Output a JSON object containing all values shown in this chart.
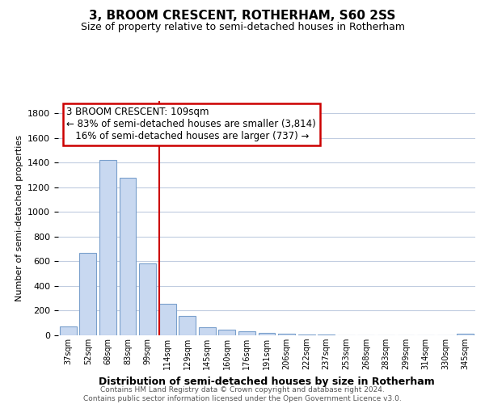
{
  "title": "3, BROOM CRESCENT, ROTHERHAM, S60 2SS",
  "subtitle": "Size of property relative to semi-detached houses in Rotherham",
  "xlabel": "Distribution of semi-detached houses by size in Rotherham",
  "ylabel": "Number of semi-detached properties",
  "bar_color": "#c8d8f0",
  "bar_edge_color": "#7aa0cc",
  "categories": [
    "37sqm",
    "52sqm",
    "68sqm",
    "83sqm",
    "99sqm",
    "114sqm",
    "129sqm",
    "145sqm",
    "160sqm",
    "176sqm",
    "191sqm",
    "206sqm",
    "222sqm",
    "237sqm",
    "253sqm",
    "268sqm",
    "283sqm",
    "299sqm",
    "314sqm",
    "330sqm",
    "345sqm"
  ],
  "values": [
    70,
    670,
    1420,
    1280,
    580,
    255,
    155,
    65,
    45,
    30,
    20,
    15,
    8,
    5,
    3,
    2,
    2,
    1,
    0,
    0,
    10
  ],
  "ylim": [
    0,
    1900
  ],
  "yticks": [
    0,
    200,
    400,
    600,
    800,
    1000,
    1200,
    1400,
    1600,
    1800
  ],
  "property_bar_index": 5,
  "annotation_title": "3 BROOM CRESCENT: 109sqm",
  "annotation_line1": "← 83% of semi-detached houses are smaller (3,814)",
  "annotation_line2": "   16% of semi-detached houses are larger (737) →",
  "annotation_box_color": "#ffffff",
  "annotation_box_edge": "#cc0000",
  "vline_color": "#cc0000",
  "footer_line1": "Contains HM Land Registry data © Crown copyright and database right 2024.",
  "footer_line2": "Contains public sector information licensed under the Open Government Licence v3.0.",
  "background_color": "#ffffff",
  "grid_color": "#c0cce0"
}
